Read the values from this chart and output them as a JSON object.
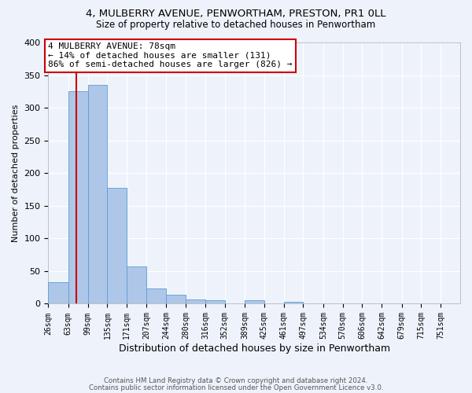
{
  "title1": "4, MULBERRY AVENUE, PENWORTHAM, PRESTON, PR1 0LL",
  "title2": "Size of property relative to detached houses in Penwortham",
  "xlabel": "Distribution of detached houses by size in Penwortham",
  "ylabel": "Number of detached properties",
  "bar_labels": [
    "26sqm",
    "63sqm",
    "99sqm",
    "135sqm",
    "171sqm",
    "207sqm",
    "244sqm",
    "280sqm",
    "316sqm",
    "352sqm",
    "389sqm",
    "425sqm",
    "461sqm",
    "497sqm",
    "534sqm",
    "570sqm",
    "606sqm",
    "642sqm",
    "679sqm",
    "715sqm",
    "751sqm"
  ],
  "bin_edges": [
    26,
    63,
    99,
    135,
    171,
    207,
    244,
    280,
    316,
    352,
    389,
    425,
    461,
    497,
    534,
    570,
    606,
    642,
    679,
    715,
    751,
    787
  ],
  "bar_heights": [
    33,
    325,
    335,
    178,
    57,
    23,
    14,
    6,
    5,
    0,
    5,
    0,
    3,
    0,
    0,
    0,
    0,
    0,
    0,
    0,
    0
  ],
  "bar_color": "#aec6e8",
  "bar_edge_color": "#5a9fd4",
  "property_size": 78,
  "vline_color": "#cc0000",
  "annotation_line1": "4 MULBERRY AVENUE: 78sqm",
  "annotation_line2": "← 14% of detached houses are smaller (131)",
  "annotation_line3": "86% of semi-detached houses are larger (826) →",
  "annotation_box_facecolor": "#ffffff",
  "annotation_box_edgecolor": "#cc0000",
  "footer1": "Contains HM Land Registry data © Crown copyright and database right 2024.",
  "footer2": "Contains public sector information licensed under the Open Government Licence v3.0.",
  "ylim": [
    0,
    400
  ],
  "yticks": [
    0,
    50,
    100,
    150,
    200,
    250,
    300,
    350,
    400
  ],
  "background_color": "#eef3fb",
  "grid_color": "#ffffff",
  "title1_fontsize": 9.5,
  "title2_fontsize": 8.5,
  "annotation_fontsize": 8,
  "ylabel_fontsize": 8,
  "xlabel_fontsize": 9,
  "tick_fontsize": 7
}
